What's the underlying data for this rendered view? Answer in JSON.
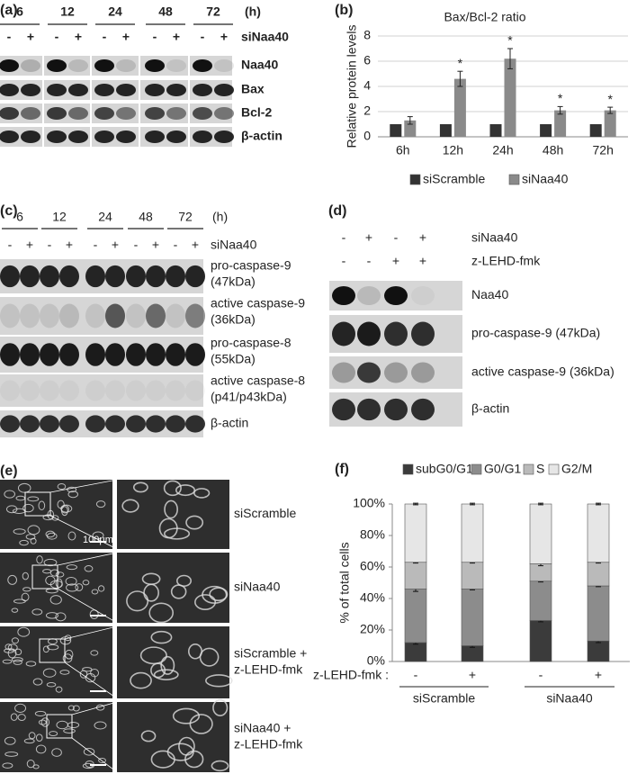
{
  "panels": {
    "a": {
      "label": "(a)",
      "times": [
        "6",
        "12",
        "24",
        "48",
        "72"
      ],
      "time_unit": "(h)",
      "signs": [
        "-",
        "+"
      ],
      "treatment": "siNaa40",
      "rows": [
        "Naa40",
        "Bax",
        "Bcl-2",
        "β-actin"
      ]
    },
    "c": {
      "label": "(c)",
      "times": [
        "6",
        "12",
        "24",
        "48",
        "72"
      ],
      "time_unit": "(h)",
      "signs": [
        "-",
        "+"
      ],
      "treatment": "siNaa40",
      "rows": [
        [
          "pro-caspase-9",
          "(47kDa)"
        ],
        [
          "active caspase-9",
          "(36kDa)"
        ],
        [
          "pro-caspase-8",
          "(55kDa)"
        ],
        [
          "active caspase-8",
          "(p41/p43kDa)"
        ],
        [
          "β-actin"
        ]
      ]
    },
    "d": {
      "label": "(d)",
      "conditions": [
        {
          "name": "siNaa40",
          "signs": [
            "-",
            "+",
            "-",
            "+"
          ]
        },
        {
          "name": "z-LEHD-fmk",
          "signs": [
            "-",
            "-",
            "+",
            "+"
          ]
        }
      ],
      "rows": [
        "Naa40",
        "pro-caspase-9 (47kDa)",
        "active caspase-9 (36kDa)",
        "β-actin"
      ]
    },
    "e": {
      "label": "(e)",
      "rows": [
        [
          "siScramble"
        ],
        [
          "siNaa40"
        ],
        [
          "siScramble +",
          "z-LEHD-fmk"
        ],
        [
          "siNaa40 +",
          "z-LEHD-fmk"
        ]
      ],
      "scale_bar": "100μm"
    }
  },
  "chart_data": [
    {
      "panel_label": "(b)",
      "type": "bar",
      "title": "Bax/Bcl-2 ratio",
      "y_label": "Relative protein levels",
      "categories": [
        "6h",
        "12h",
        "24h",
        "48h",
        "72h"
      ],
      "series": [
        {
          "name": "siScramble",
          "color": "#333333",
          "values": [
            1,
            1,
            1,
            1,
            1
          ]
        },
        {
          "name": "siNaa40",
          "color": "#8a8a8a",
          "values": [
            1.3,
            4.6,
            6.2,
            2.1,
            2.1
          ],
          "errors": [
            0.3,
            0.6,
            0.8,
            0.3,
            0.25
          ],
          "significance": [
            null,
            "*",
            "*",
            "*",
            "*"
          ]
        }
      ],
      "ylim": [
        0,
        8
      ],
      "yticks": [
        0,
        2,
        4,
        6,
        8
      ],
      "grid": true,
      "legend": "bottom"
    },
    {
      "panel_label": "(f)",
      "type": "stacked_bar",
      "y_label": "% of total cells",
      "x_label": "z-LEHD-fmk :",
      "categories": [
        "-",
        "+",
        "-",
        "+"
      ],
      "groups": [
        "siScramble",
        "siNaa40"
      ],
      "series": [
        {
          "name": "subG0/G1",
          "color": "#3b3b3b",
          "values": [
            12,
            10,
            26,
            13
          ],
          "errors": [
            1,
            1,
            0.8,
            1
          ]
        },
        {
          "name": "G0/G1",
          "color": "#8c8c8c",
          "values": [
            34,
            36,
            25,
            35
          ],
          "errors": [
            1.5,
            0.5,
            0.5,
            0.5
          ]
        },
        {
          "name": "S",
          "color": "#bababa",
          "values": [
            17,
            17,
            11,
            15
          ],
          "errors": [
            0.5,
            0.5,
            1.2,
            0.5
          ]
        },
        {
          "name": "G2/M",
          "color": "#e6e6e6",
          "values": [
            37,
            37,
            38,
            37
          ],
          "errors": [
            0.5,
            0.5,
            0.5,
            0.5
          ]
        }
      ],
      "ylim": [
        0,
        100
      ],
      "yticks": [
        {
          "value": 0,
          "label": "0%"
        },
        {
          "value": 20,
          "label": "20%"
        },
        {
          "value": 40,
          "label": "40%"
        },
        {
          "value": 60,
          "label": "60%"
        },
        {
          "value": 80,
          "label": "80%"
        },
        {
          "value": 100,
          "label": "100%"
        }
      ],
      "grid": false,
      "legend": "top"
    }
  ]
}
